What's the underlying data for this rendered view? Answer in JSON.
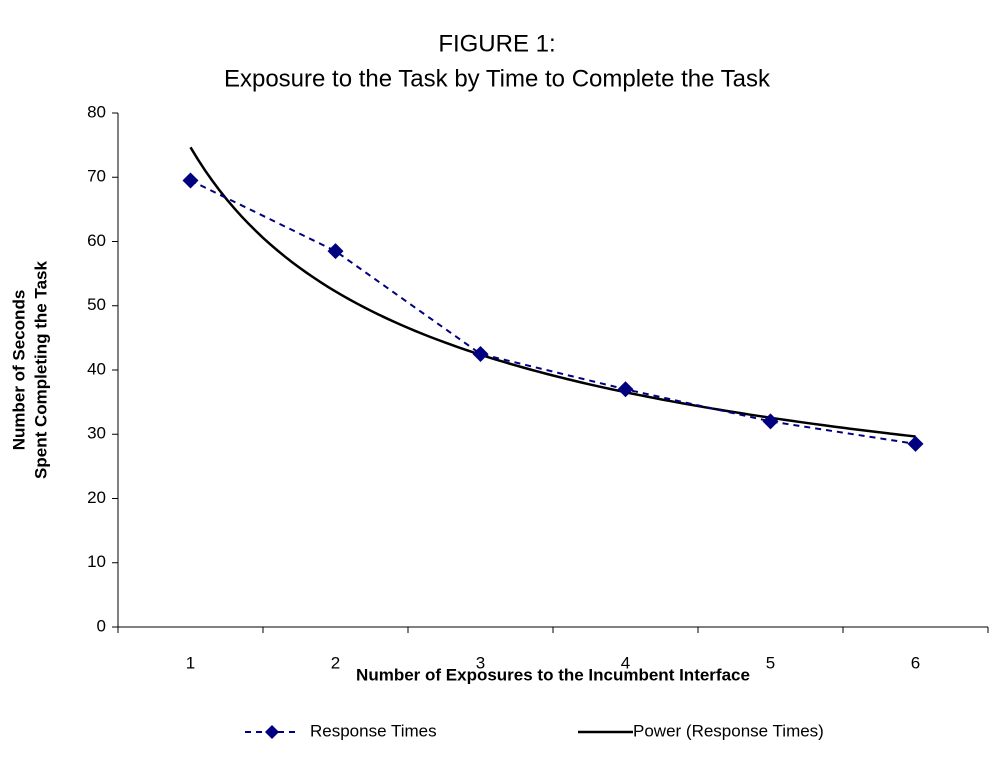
{
  "chart_data": {
    "type": "line",
    "title": "FIGURE 1:",
    "subtitle": "Exposure to the Task by Time to Complete the Task",
    "x_label": "Number of Exposures to the Incumbent Interface",
    "y_label": [
      "Number of Seconds",
      "Spent Completing the Task"
    ],
    "categories": [
      "1",
      "2",
      "3",
      "4",
      "5",
      "6"
    ],
    "series": [
      {
        "name": "Response Times",
        "color": "#000080",
        "marker": "diamond",
        "dash": true,
        "values": [
          69.5,
          58.5,
          42.5,
          37,
          32,
          28.5
        ]
      }
    ],
    "trendline": {
      "type": "power",
      "name": "Power (Response Times)",
      "color": "#000000",
      "series": 0
    },
    "ylim": [
      0,
      80
    ],
    "yticks": [
      0,
      10,
      20,
      30,
      40,
      50,
      60,
      70,
      80
    ],
    "grid": false,
    "legend": "bottom"
  }
}
